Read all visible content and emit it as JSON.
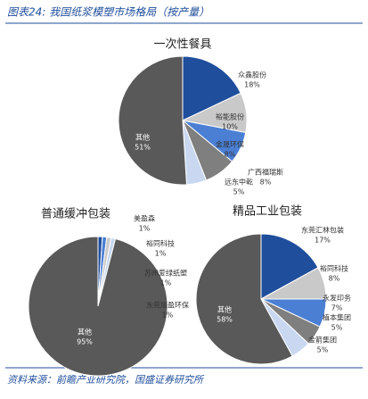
{
  "title": "图表24: 我国纸浆模塑市场格局（按产量）",
  "source": "资料来源：前瞻产业研究院，国盛证券研究所",
  "chart_data": [
    {
      "type": "pie",
      "title": "一次性餐具",
      "categories": [
        "众鑫股份",
        "裕能股份",
        "金晟环保",
        "广西福瑞斯",
        "远东中乾",
        "其他"
      ],
      "values": [
        18,
        10,
        8,
        8,
        5,
        51
      ],
      "value_labels": [
        "18%",
        "10%",
        "8%",
        "8%",
        "5%",
        "51%"
      ],
      "colors": [
        "#1f4e9c",
        "#c9c9c9",
        "#4a7fd4",
        "#7f7f7f",
        "#c9d8f0",
        "#595959"
      ]
    },
    {
      "type": "pie",
      "title": "普通缓冲包装",
      "categories": [
        "美盈森",
        "裕同科技",
        "苏州爱绿纸塑",
        "东莞旭盈环保",
        "其他"
      ],
      "values": [
        1,
        1,
        1,
        1,
        95
      ],
      "value_labels": [
        "1%",
        "1%",
        "1%",
        "1%",
        "95%"
      ],
      "colors": [
        "#1f4e9c",
        "#4a7fd4",
        "#c9c9c9",
        "#c9d8f0",
        "#595959"
      ]
    },
    {
      "type": "pie",
      "title": "精品工业包装",
      "categories": [
        "东莞汇林包装",
        "裕同科技",
        "永发印务",
        "植本集团",
        "金箭集团",
        "其他"
      ],
      "values": [
        17,
        8,
        7,
        5,
        5,
        58
      ],
      "value_labels": [
        "17%",
        "8%",
        "7%",
        "5%",
        "5%",
        "58%"
      ],
      "colors": [
        "#1f4e9c",
        "#c9c9c9",
        "#4a7fd4",
        "#7f7f7f",
        "#c9d8f0",
        "#595959"
      ]
    }
  ]
}
